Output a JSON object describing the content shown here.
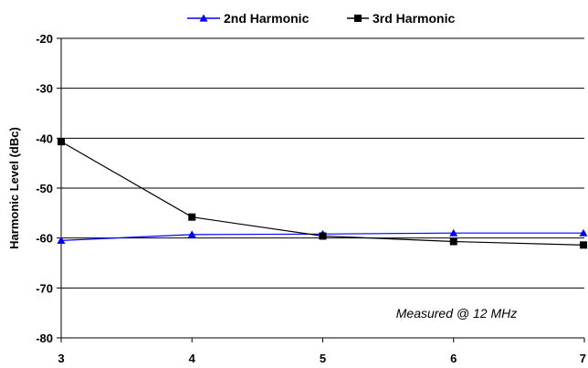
{
  "chart_data": {
    "type": "line",
    "title": "",
    "xlabel": "",
    "ylabel": "Harmonic Level (dBc)",
    "x": [
      3,
      4,
      5,
      6,
      7
    ],
    "xlim": [
      3,
      7
    ],
    "ylim": [
      -80,
      -20
    ],
    "yticks": [
      -20,
      -30,
      -40,
      -50,
      -60,
      -70,
      -80
    ],
    "xticks": [
      3,
      4,
      5,
      6,
      7
    ],
    "grid": "horizontal",
    "legend_position": "top",
    "annotation": "Measured @ 12 MHz",
    "series": [
      {
        "name": "2nd Harmonic",
        "color": "#0000ff",
        "marker": "triangle",
        "values": [
          -60.5,
          -59.3,
          -59.2,
          -59.0,
          -59.0
        ]
      },
      {
        "name": "3rd Harmonic",
        "color": "#000000",
        "marker": "square",
        "values": [
          -40.7,
          -55.8,
          -59.6,
          -60.7,
          -61.4
        ]
      }
    ]
  }
}
